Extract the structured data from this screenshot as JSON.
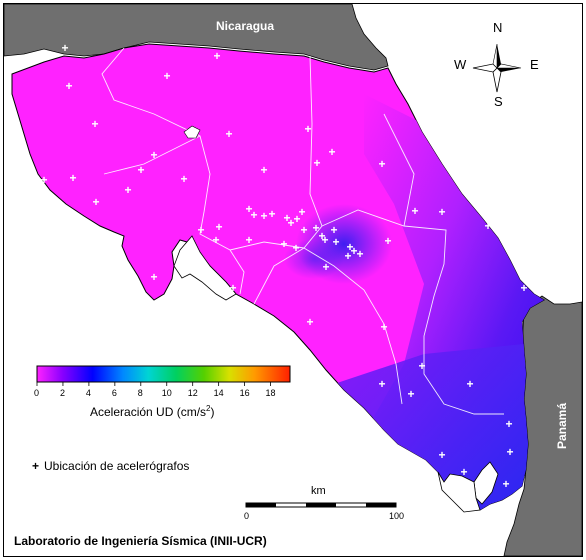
{
  "countries": {
    "north": "Nicaragua",
    "south": "Panamá"
  },
  "compass": {
    "n": "N",
    "s": "S",
    "e": "E",
    "w": "W"
  },
  "colorbar": {
    "label_prefix": "Aceleración UD (cm/s",
    "label_sup": "2",
    "label_suffix": ")",
    "ticks": [
      "0",
      "2",
      "4",
      "6",
      "8",
      "10",
      "12",
      "14",
      "16",
      "18"
    ],
    "range": [
      0,
      19.5
    ]
  },
  "legend": {
    "marker": "+",
    "text": "Ubicación de acelerógrafos"
  },
  "scalebar": {
    "unit": "km",
    "start": "0",
    "end": "100"
  },
  "credit": "Laboratorio de Ingeniería Sísmica (INII-UCR)",
  "colors": {
    "land_low": "#ff22ff",
    "land_high": "#1a10f0",
    "sea": "#ffffff",
    "other_land": "#6f6f6f",
    "background": "#aaaaaa"
  }
}
